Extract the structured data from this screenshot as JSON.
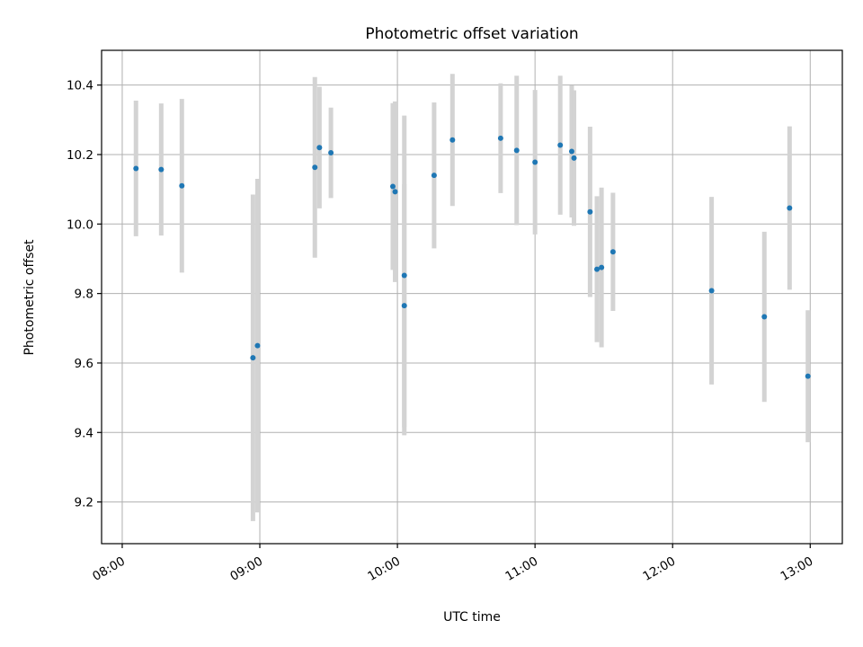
{
  "chart_data": {
    "type": "scatter",
    "title": "Photometric offset variation",
    "xlabel": "UTC time",
    "ylabel": "Photometric offset",
    "x_unit": "hours UTC",
    "xlim": [
      "07:51",
      "13:14"
    ],
    "ylim": [
      9.08,
      10.5
    ],
    "x_ticks": [
      "08:00",
      "09:00",
      "10:00",
      "11:00",
      "12:00",
      "13:00"
    ],
    "y_ticks": [
      "9.2",
      "9.4",
      "9.6",
      "9.8",
      "10.0",
      "10.2",
      "10.4"
    ],
    "grid": true,
    "marker_color": "#1f77b4",
    "errorbar_color": "#d3d3d3",
    "points": [
      {
        "t": "08:06",
        "y": 10.16,
        "err": 0.195
      },
      {
        "t": "08:17",
        "y": 10.157,
        "err": 0.19
      },
      {
        "t": "08:26",
        "y": 10.11,
        "err": 0.25
      },
      {
        "t": "08:57",
        "y": 9.615,
        "err": 0.47
      },
      {
        "t": "08:59",
        "y": 9.65,
        "err": 0.48
      },
      {
        "t": "09:24",
        "y": 10.163,
        "err": 0.26
      },
      {
        "t": "09:26",
        "y": 10.22,
        "err": 0.175
      },
      {
        "t": "09:31",
        "y": 10.205,
        "err": 0.13
      },
      {
        "t": "09:58",
        "y": 10.108,
        "err": 0.24
      },
      {
        "t": "09:59",
        "y": 10.093,
        "err": 0.26
      },
      {
        "t": "10:03",
        "y": 9.765,
        "err": 0.35
      },
      {
        "t": "10:03",
        "y": 9.852,
        "err": 0.46
      },
      {
        "t": "10:16",
        "y": 10.14,
        "err": 0.21
      },
      {
        "t": "10:24",
        "y": 10.242,
        "err": 0.19
      },
      {
        "t": "10:45",
        "y": 10.247,
        "err": 0.158
      },
      {
        "t": "10:52",
        "y": 10.212,
        "err": 0.215
      },
      {
        "t": "11:00",
        "y": 10.178,
        "err": 0.208
      },
      {
        "t": "11:11",
        "y": 10.227,
        "err": 0.2
      },
      {
        "t": "11:16",
        "y": 10.209,
        "err": 0.19
      },
      {
        "t": "11:17",
        "y": 10.19,
        "err": 0.195
      },
      {
        "t": "11:24",
        "y": 10.035,
        "err": 0.245
      },
      {
        "t": "11:27",
        "y": 9.87,
        "err": 0.21
      },
      {
        "t": "11:29",
        "y": 9.875,
        "err": 0.23
      },
      {
        "t": "11:34",
        "y": 9.92,
        "err": 0.17
      },
      {
        "t": "12:17",
        "y": 9.808,
        "err": 0.27
      },
      {
        "t": "12:40",
        "y": 9.733,
        "err": 0.245
      },
      {
        "t": "12:51",
        "y": 10.046,
        "err": 0.235
      },
      {
        "t": "12:59",
        "y": 9.562,
        "err": 0.19
      }
    ]
  }
}
